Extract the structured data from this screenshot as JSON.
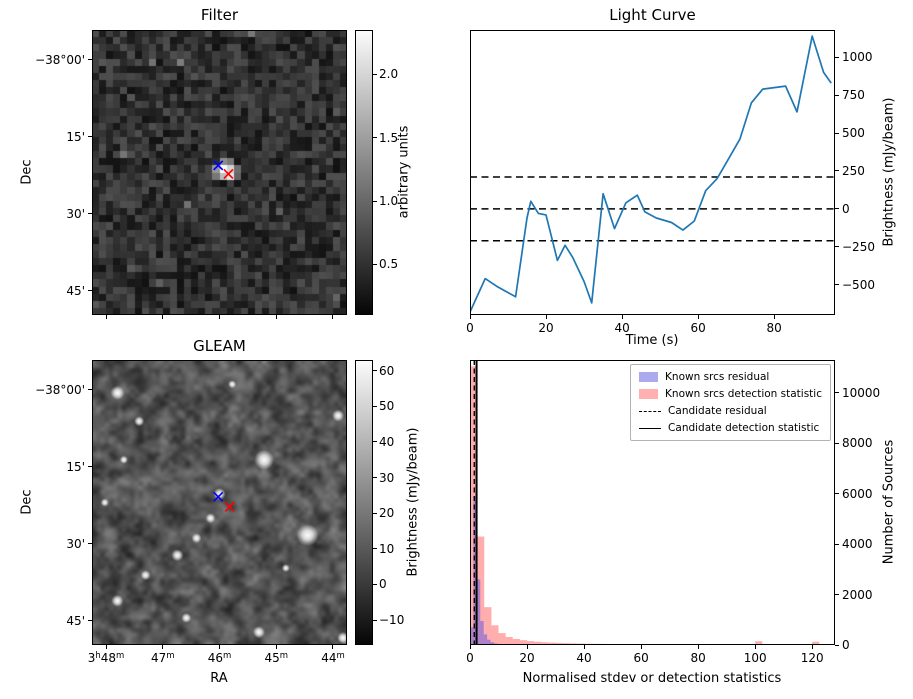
{
  "figure": {
    "background": "#ffffff"
  },
  "chart_data": [
    {
      "type": "heatmap",
      "title": "Filter",
      "ylabel": "Dec",
      "colormap": "gray",
      "dec_ticks": [
        {
          "f": 0.105,
          "label": "−38°00'"
        },
        {
          "f": 0.375,
          "label": "15'"
        },
        {
          "f": 0.645,
          "label": "30'"
        },
        {
          "f": 0.915,
          "label": "45'"
        }
      ],
      "colorbar": {
        "label": "arbitrary units",
        "vmin": 0.1,
        "vmax": 2.35,
        "ticks": [
          {
            "v": 0.5,
            "label": "0.5"
          },
          {
            "v": 1.0,
            "label": "1.0"
          },
          {
            "v": 1.5,
            "label": "1.5"
          },
          {
            "v": 2.0,
            "label": "2.0"
          }
        ]
      },
      "bright_spot": {
        "fx": 0.5,
        "fy": 0.48
      },
      "markers": [
        {
          "name": "candidate",
          "symbol": "x",
          "color": "#0000ff",
          "fx": 0.495,
          "fy": 0.475
        },
        {
          "name": "nearest-source",
          "symbol": "x",
          "color": "#ff0000",
          "fx": 0.535,
          "fy": 0.505
        }
      ]
    },
    {
      "type": "line",
      "title": "Light Curve",
      "xlabel": "Time (s)",
      "ylabel": "Brightness (mJy/beam)",
      "xlim": [
        0,
        96
      ],
      "ylim": [
        -700,
        1180
      ],
      "xticks": [
        0,
        20,
        40,
        60,
        80
      ],
      "yticks": [
        -500,
        -250,
        0,
        250,
        500,
        750,
        1000
      ],
      "hlines": [
        210,
        0,
        -210
      ],
      "line_color": "#1f77b4",
      "points": [
        [
          0,
          -680
        ],
        [
          4,
          -460
        ],
        [
          7,
          -510
        ],
        [
          12,
          -580
        ],
        [
          15,
          -60
        ],
        [
          16,
          50
        ],
        [
          18,
          -30
        ],
        [
          20,
          -40
        ],
        [
          23,
          -340
        ],
        [
          25,
          -240
        ],
        [
          27,
          -320
        ],
        [
          30,
          -480
        ],
        [
          32,
          -620
        ],
        [
          35,
          100
        ],
        [
          38,
          -130
        ],
        [
          41,
          40
        ],
        [
          44,
          90
        ],
        [
          46,
          -20
        ],
        [
          49,
          -60
        ],
        [
          53,
          -90
        ],
        [
          56,
          -140
        ],
        [
          59,
          -80
        ],
        [
          62,
          120
        ],
        [
          65,
          200
        ],
        [
          68,
          330
        ],
        [
          71,
          460
        ],
        [
          74,
          700
        ],
        [
          77,
          790
        ],
        [
          80,
          800
        ],
        [
          83,
          810
        ],
        [
          86,
          640
        ],
        [
          90,
          1140
        ],
        [
          93,
          900
        ],
        [
          95,
          830
        ]
      ]
    },
    {
      "type": "heatmap",
      "title": "GLEAM",
      "xlabel": "RA",
      "ylabel": "Dec",
      "colormap": "gray",
      "dec_ticks": [
        {
          "f": 0.105,
          "label": "−38°00'"
        },
        {
          "f": 0.375,
          "label": "15'"
        },
        {
          "f": 0.645,
          "label": "30'"
        },
        {
          "f": 0.915,
          "label": "45'"
        }
      ],
      "ra_ticks": [
        {
          "f": 0.055,
          "parts": [
            [
              "3",
              false
            ],
            [
              "h",
              true
            ],
            [
              "48",
              false
            ],
            [
              "m",
              true
            ]
          ]
        },
        {
          "f": 0.2775,
          "parts": [
            [
              "47",
              false
            ],
            [
              "m",
              true
            ]
          ]
        },
        {
          "f": 0.5,
          "parts": [
            [
              "46",
              false
            ],
            [
              "m",
              true
            ]
          ]
        },
        {
          "f": 0.7225,
          "parts": [
            [
              "45",
              false
            ],
            [
              "m",
              true
            ]
          ]
        },
        {
          "f": 0.945,
          "parts": [
            [
              "44",
              false
            ],
            [
              "m",
              true
            ]
          ]
        }
      ],
      "colorbar": {
        "label": "Brightness (mJy/beam)",
        "vmin": -17,
        "vmax": 63,
        "ticks": [
          {
            "v": 60,
            "label": "60"
          },
          {
            "v": 50,
            "label": "50"
          },
          {
            "v": 40,
            "label": "40"
          },
          {
            "v": 30,
            "label": "30"
          },
          {
            "v": 20,
            "label": "20"
          },
          {
            "v": 10,
            "label": "10"
          },
          {
            "v": 0,
            "label": "0"
          },
          {
            "v": -10,
            "label": "−10"
          }
        ]
      },
      "bright_sources": [
        {
          "fx": 0.1,
          "fy": 0.115,
          "r": 7
        },
        {
          "fx": 0.185,
          "fy": 0.215,
          "r": 5
        },
        {
          "fx": 0.965,
          "fy": 0.195,
          "r": 6
        },
        {
          "fx": 0.675,
          "fy": 0.35,
          "r": 10
        },
        {
          "fx": 0.5,
          "fy": 0.47,
          "r": 6
        },
        {
          "fx": 0.465,
          "fy": 0.555,
          "r": 5
        },
        {
          "fx": 0.41,
          "fy": 0.625,
          "r": 5
        },
        {
          "fx": 0.845,
          "fy": 0.615,
          "r": 11
        },
        {
          "fx": 0.335,
          "fy": 0.685,
          "r": 6
        },
        {
          "fx": 0.21,
          "fy": 0.755,
          "r": 5
        },
        {
          "fx": 0.1,
          "fy": 0.845,
          "r": 6
        },
        {
          "fx": 0.37,
          "fy": 0.905,
          "r": 5
        },
        {
          "fx": 0.655,
          "fy": 0.955,
          "r": 6
        },
        {
          "fx": 0.05,
          "fy": 0.5,
          "r": 4
        },
        {
          "fx": 0.125,
          "fy": 0.35,
          "r": 4
        },
        {
          "fx": 0.55,
          "fy": 0.085,
          "r": 4
        },
        {
          "fx": 0.76,
          "fy": 0.73,
          "r": 4
        },
        {
          "fx": 0.985,
          "fy": 0.975,
          "r": 6
        }
      ],
      "markers": [
        {
          "name": "candidate",
          "symbol": "x",
          "color": "#0000ff",
          "fx": 0.495,
          "fy": 0.48
        },
        {
          "name": "nearest-source",
          "symbol": "x",
          "color": "#ff0000",
          "fx": 0.54,
          "fy": 0.515
        }
      ]
    },
    {
      "type": "histogram",
      "xlabel": "Normalised stdev or detection statistics",
      "ylabel": "Number of Sources",
      "xlim": [
        0,
        128
      ],
      "ylim": [
        0,
        11300
      ],
      "xticks": [
        0,
        20,
        40,
        60,
        80,
        100,
        120
      ],
      "yticks": [
        0,
        2000,
        4000,
        6000,
        8000,
        10000
      ],
      "series": [
        {
          "name": "Known srcs residual",
          "fill": "rgba(70,70,235,0.45)",
          "bin_start": 0,
          "bin_width": 1.2,
          "counts": [
            700,
            5900,
            2600,
            950,
            420,
            210,
            110,
            60,
            35,
            22,
            14,
            9,
            6,
            4,
            3,
            2,
            2,
            1,
            1,
            1
          ]
        },
        {
          "name": "Known srcs detection statistic",
          "fill": "rgba(255,60,60,0.42)",
          "bin_start": 0,
          "bin_width": 2.5,
          "counts": [
            11050,
            4300,
            1500,
            780,
            470,
            320,
            240,
            190,
            155,
            130,
            110,
            95,
            83,
            73,
            65,
            58,
            52,
            47,
            43,
            39,
            36,
            33,
            30,
            28,
            26,
            24,
            22,
            21,
            19,
            18,
            17,
            16,
            15,
            14,
            13,
            12,
            12,
            11,
            10,
            10,
            150,
            9,
            8,
            8,
            7,
            7,
            6,
            6,
            130,
            5,
            5,
            4
          ]
        }
      ],
      "vlines": [
        {
          "label": "Candidate residual",
          "style": "dashed",
          "x": 1.5
        },
        {
          "label": "Candidate detection statistic",
          "style": "solid",
          "x": 2.3
        }
      ],
      "legend": [
        {
          "swatch": "patch",
          "color": "#aaaaec",
          "label": "Known srcs residual"
        },
        {
          "swatch": "patch",
          "color": "#ffb1b1",
          "label": "Known srcs detection statistic"
        },
        {
          "swatch": "dashed",
          "color": "#000000",
          "label": "Candidate residual"
        },
        {
          "swatch": "solid",
          "color": "#000000",
          "label": "Candidate detection statistic"
        }
      ]
    }
  ]
}
